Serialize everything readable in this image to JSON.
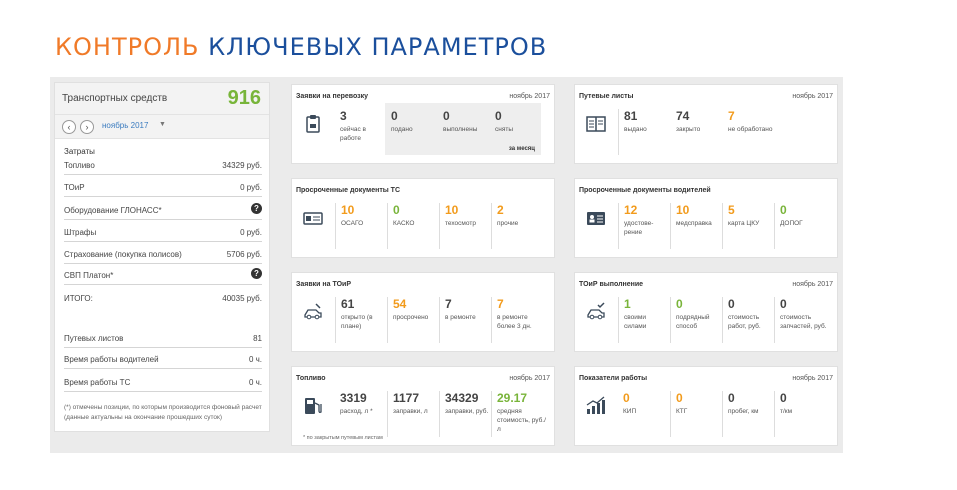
{
  "title": {
    "part1": "КОНТРОЛЬ ",
    "part2": "КЛЮЧЕВЫХ ПАРАМЕТРОВ"
  },
  "colors": {
    "orange": "#f29b1c",
    "green": "#79b43a",
    "title_orange": "#f07a28",
    "title_blue": "#1b4f9c"
  },
  "left": {
    "vehicles_label": "Транспортных средств",
    "vehicles_count": "916",
    "month": "ноябрь 2017",
    "caret": "▼",
    "prev_icon": "chevron-left",
    "next_icon": "chevron-right",
    "costs_title": "Затраты",
    "costs": [
      {
        "name": "Топливо",
        "value": "34329 руб."
      },
      {
        "name": "ТОиР",
        "value": "0 руб."
      },
      {
        "name": "Оборудование ГЛОНАСС*",
        "value": "?"
      },
      {
        "name": "Штрафы",
        "value": "0 руб."
      },
      {
        "name": "Страхование (покупка полисов)",
        "value": "5706 руб."
      },
      {
        "name": "СВП Платон*",
        "value": "?"
      },
      {
        "name": "ИТОГО:",
        "value": "40035 руб."
      }
    ],
    "stats": [
      {
        "name": "Путевых листов",
        "value": "81"
      },
      {
        "name": "Время работы водителей",
        "value": "0 ч."
      },
      {
        "name": "Время работы ТС",
        "value": "0 ч."
      }
    ],
    "note": "(*) отмечены позиции, по которым производится фоновый расчет (данные актуальны на окончание прошедших суток)"
  },
  "cards": {
    "requests": {
      "title": "Заявки на перевозку",
      "date": "ноябрь 2017",
      "icon": "clipboard-icon",
      "metrics": [
        {
          "v": "3",
          "d": "сейчас в работе"
        },
        {
          "v": "0",
          "d": "подано"
        },
        {
          "v": "0",
          "d": "выполнены"
        },
        {
          "v": "0",
          "d": "сняты"
        }
      ],
      "period": "за месяц"
    },
    "waybills": {
      "title": "Путевые листы",
      "date": "ноябрь 2017",
      "icon": "book-icon",
      "metrics": [
        {
          "v": "81",
          "d": "выдано"
        },
        {
          "v": "74",
          "d": "закрыто"
        },
        {
          "v": "7",
          "d": "не обработано"
        }
      ]
    },
    "vehicle_docs": {
      "title": "Просроченные документы ТС",
      "icon": "id-card-icon",
      "metrics": [
        {
          "v": "10",
          "d": "ОСАГО"
        },
        {
          "v": "0",
          "d": "КАСКО"
        },
        {
          "v": "10",
          "d": "техосмотр"
        },
        {
          "v": "2",
          "d": "прочие"
        }
      ]
    },
    "driver_docs": {
      "title": "Просроченные документы водителей",
      "icon": "driver-license-icon",
      "metrics": [
        {
          "v": "12",
          "d": "удостове-рение"
        },
        {
          "v": "10",
          "d": "медсправка"
        },
        {
          "v": "5",
          "d": "карта ЦКУ"
        },
        {
          "v": "0",
          "d": "ДОПОГ"
        }
      ]
    },
    "repair_requests": {
      "title": "Заявки на ТОиР",
      "icon": "car-repair-icon",
      "metrics": [
        {
          "v": "61",
          "d": "открыто (в плане)"
        },
        {
          "v": "54",
          "d": "просрочено"
        },
        {
          "v": "7",
          "d": "в ремонте"
        },
        {
          "v": "7",
          "d": "в ремонте более 3 дн."
        }
      ]
    },
    "repair_done": {
      "title": "ТОиР выполнение",
      "date": "ноябрь 2017",
      "icon": "car-check-icon",
      "metrics": [
        {
          "v": "1",
          "d": "своими силами"
        },
        {
          "v": "0",
          "d": "подрядный способ"
        },
        {
          "v": "0",
          "d": "стоимость работ, руб."
        },
        {
          "v": "0",
          "d": "стоимость запчастей, руб."
        }
      ]
    },
    "fuel": {
      "title": "Топливо",
      "date": "ноябрь 2017",
      "icon": "fuel-pump-icon",
      "metrics": [
        {
          "v": "3319",
          "d": "расход, л *"
        },
        {
          "v": "1177",
          "d": "заправки, л"
        },
        {
          "v": "34329",
          "d": "заправки, руб."
        },
        {
          "v": "29.17",
          "d": "средняя стоимость, руб./л"
        }
      ],
      "footnote": "* по закрытым путевым листам"
    },
    "performance": {
      "title": "Показатели работы",
      "date": "ноябрь 2017",
      "icon": "bar-chart-icon",
      "metrics": [
        {
          "v": "0",
          "d": "КИП"
        },
        {
          "v": "0",
          "d": "КТГ"
        },
        {
          "v": "0",
          "d": "пробег, км"
        },
        {
          "v": "0",
          "d": "т/км"
        }
      ]
    }
  }
}
